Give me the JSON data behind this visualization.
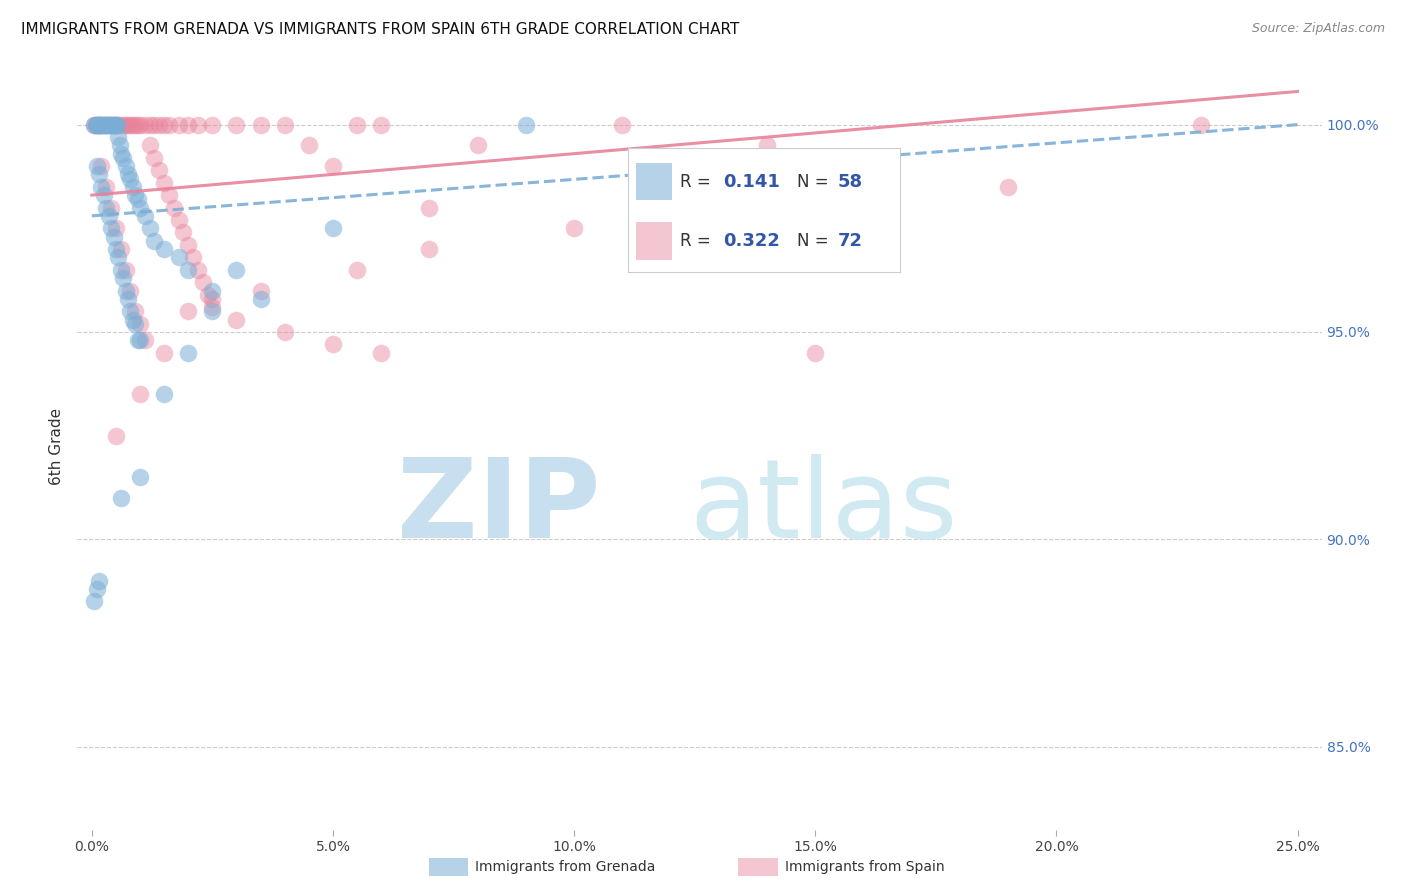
{
  "title": "IMMIGRANTS FROM GRENADA VS IMMIGRANTS FROM SPAIN 6TH GRADE CORRELATION CHART",
  "source": "Source: ZipAtlas.com",
  "ylabel_left": "6th Grade",
  "x_tick_values": [
    0.0,
    5.0,
    10.0,
    15.0,
    20.0,
    25.0
  ],
  "y_tick_values": [
    85.0,
    90.0,
    95.0,
    100.0
  ],
  "ylim": [
    83.0,
    101.5
  ],
  "xlim": [
    -0.3,
    25.5
  ],
  "background_color": "#ffffff",
  "grid_color": "#cccccc",
  "watermark_zip_color": "#cce0f5",
  "watermark_atlas_color": "#d5e8f0",
  "blue_color": "#7aaed6",
  "pink_color": "#e8829a",
  "right_axis_color": "#4472c4",
  "blue_line_x": [
    0.0,
    25.0
  ],
  "blue_line_y": [
    97.8,
    100.0
  ],
  "pink_line_x": [
    0.0,
    25.0
  ],
  "pink_line_y": [
    98.3,
    100.8
  ],
  "blue_scatter_x": [
    0.05,
    0.08,
    0.1,
    0.12,
    0.15,
    0.18,
    0.2,
    0.22,
    0.25,
    0.28,
    0.3,
    0.32,
    0.35,
    0.38,
    0.4,
    0.42,
    0.45,
    0.48,
    0.5,
    0.52,
    0.55,
    0.58,
    0.6,
    0.65,
    0.7,
    0.75,
    0.8,
    0.85,
    0.9,
    0.95,
    1.0,
    1.1,
    1.2,
    1.3,
    1.5,
    1.8,
    2.0,
    2.5,
    3.5,
    0.1,
    0.2,
    0.3,
    0.4,
    0.5,
    0.6,
    0.7,
    0.8,
    0.9,
    1.0,
    0.15,
    0.25,
    0.35,
    0.45,
    0.55,
    0.65,
    0.75,
    0.85,
    0.95
  ],
  "blue_scatter_y": [
    100.0,
    100.0,
    100.0,
    100.0,
    100.0,
    100.0,
    100.0,
    100.0,
    100.0,
    100.0,
    100.0,
    100.0,
    100.0,
    100.0,
    100.0,
    100.0,
    100.0,
    100.0,
    100.0,
    100.0,
    99.7,
    99.5,
    99.3,
    99.2,
    99.0,
    98.8,
    98.7,
    98.5,
    98.3,
    98.2,
    98.0,
    97.8,
    97.5,
    97.2,
    97.0,
    96.8,
    96.5,
    96.0,
    95.8,
    99.0,
    98.5,
    98.0,
    97.5,
    97.0,
    96.5,
    96.0,
    95.5,
    95.2,
    94.8,
    98.8,
    98.3,
    97.8,
    97.3,
    96.8,
    96.3,
    95.8,
    95.3,
    94.8
  ],
  "blue_outlier_x": [
    0.05,
    0.1,
    0.15,
    0.6,
    1.0,
    1.5,
    2.0,
    2.5,
    3.0,
    5.0,
    9.0
  ],
  "blue_outlier_y": [
    88.5,
    88.8,
    89.0,
    91.0,
    91.5,
    93.5,
    94.5,
    95.5,
    96.5,
    97.5,
    100.0
  ],
  "pink_scatter_x": [
    0.05,
    0.08,
    0.1,
    0.15,
    0.2,
    0.25,
    0.3,
    0.35,
    0.4,
    0.45,
    0.5,
    0.55,
    0.6,
    0.65,
    0.7,
    0.75,
    0.8,
    0.85,
    0.9,
    0.95,
    1.0,
    1.1,
    1.2,
    1.3,
    1.4,
    1.5,
    1.6,
    1.8,
    2.0,
    2.2,
    2.5,
    3.0,
    3.5,
    4.0,
    4.5,
    5.0,
    5.5,
    6.0,
    7.0,
    8.0,
    0.2,
    0.3,
    0.4,
    0.5,
    0.6,
    0.7,
    0.8,
    0.9,
    1.0,
    1.1,
    1.2,
    1.3,
    1.4,
    1.5,
    1.6,
    1.7,
    1.8,
    1.9,
    2.0,
    2.1,
    2.2,
    2.3,
    2.4,
    2.5,
    3.0,
    4.0,
    5.0,
    6.0,
    11.0,
    14.0,
    19.0,
    23.0
  ],
  "pink_scatter_y": [
    100.0,
    100.0,
    100.0,
    100.0,
    100.0,
    100.0,
    100.0,
    100.0,
    100.0,
    100.0,
    100.0,
    100.0,
    100.0,
    100.0,
    100.0,
    100.0,
    100.0,
    100.0,
    100.0,
    100.0,
    100.0,
    100.0,
    100.0,
    100.0,
    100.0,
    100.0,
    100.0,
    100.0,
    100.0,
    100.0,
    100.0,
    100.0,
    100.0,
    100.0,
    99.5,
    99.0,
    100.0,
    100.0,
    98.0,
    99.5,
    99.0,
    98.5,
    98.0,
    97.5,
    97.0,
    96.5,
    96.0,
    95.5,
    95.2,
    94.8,
    99.5,
    99.2,
    98.9,
    98.6,
    98.3,
    98.0,
    97.7,
    97.4,
    97.1,
    96.8,
    96.5,
    96.2,
    95.9,
    95.6,
    95.3,
    95.0,
    94.7,
    94.5,
    100.0,
    99.5,
    98.5,
    100.0
  ],
  "pink_outlier_x": [
    0.5,
    1.0,
    1.5,
    2.0,
    2.5,
    3.5,
    5.5,
    7.0,
    10.0,
    15.0
  ],
  "pink_outlier_y": [
    92.5,
    93.5,
    94.5,
    95.5,
    95.8,
    96.0,
    96.5,
    97.0,
    97.5,
    94.5
  ],
  "title_fontsize": 11,
  "source_fontsize": 9,
  "axis_fontsize": 10
}
